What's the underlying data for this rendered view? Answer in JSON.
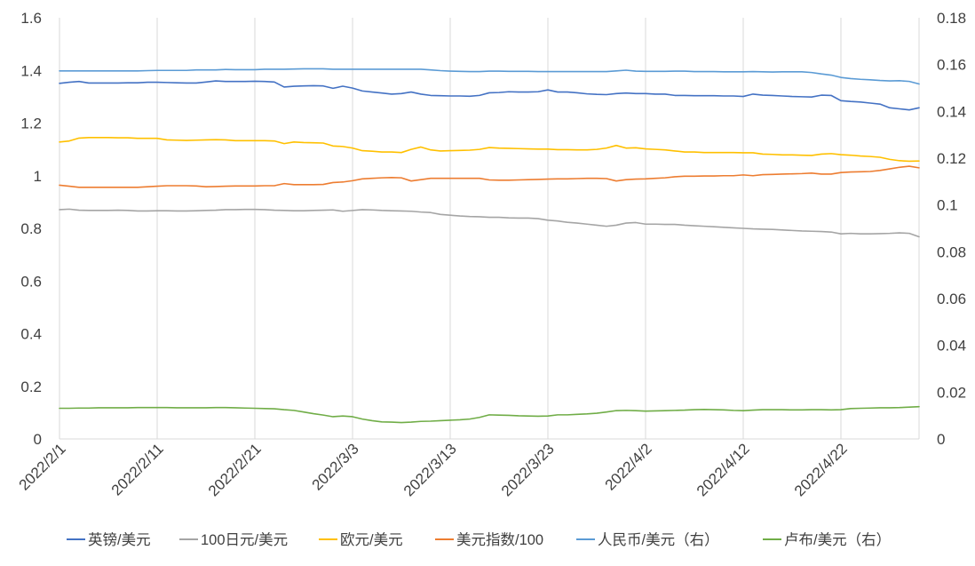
{
  "chart_data": {
    "type": "line",
    "x": [
      "2022/2/1",
      "2022/2/2",
      "2022/2/3",
      "2022/2/4",
      "2022/2/5",
      "2022/2/6",
      "2022/2/7",
      "2022/2/8",
      "2022/2/9",
      "2022/2/10",
      "2022/2/11",
      "2022/2/12",
      "2022/2/13",
      "2022/2/14",
      "2022/2/15",
      "2022/2/16",
      "2022/2/17",
      "2022/2/18",
      "2022/2/19",
      "2022/2/20",
      "2022/2/21",
      "2022/2/22",
      "2022/2/23",
      "2022/2/24",
      "2022/2/25",
      "2022/2/26",
      "2022/2/27",
      "2022/2/28",
      "2022/3/1",
      "2022/3/2",
      "2022/3/3",
      "2022/3/4",
      "2022/3/5",
      "2022/3/6",
      "2022/3/7",
      "2022/3/8",
      "2022/3/9",
      "2022/3/10",
      "2022/3/11",
      "2022/3/12",
      "2022/3/13",
      "2022/3/14",
      "2022/3/15",
      "2022/3/16",
      "2022/3/17",
      "2022/3/18",
      "2022/3/19",
      "2022/3/20",
      "2022/3/21",
      "2022/3/22",
      "2022/3/23",
      "2022/3/24",
      "2022/3/25",
      "2022/3/26",
      "2022/3/27",
      "2022/3/28",
      "2022/3/29",
      "2022/3/30",
      "2022/3/31",
      "2022/4/1",
      "2022/4/2",
      "2022/4/3",
      "2022/4/4",
      "2022/4/5",
      "2022/4/6",
      "2022/4/7",
      "2022/4/8",
      "2022/4/9",
      "2022/4/10",
      "2022/4/11",
      "2022/4/12",
      "2022/4/13",
      "2022/4/14",
      "2022/4/15",
      "2022/4/16",
      "2022/4/17",
      "2022/4/18",
      "2022/4/19",
      "2022/4/20",
      "2022/4/21",
      "2022/4/22",
      "2022/4/23",
      "2022/4/24",
      "2022/4/25",
      "2022/4/26",
      "2022/4/27",
      "2022/4/28",
      "2022/4/29",
      "2022/4/30"
    ],
    "x_tick_labels": [
      "2022/2/1",
      "2022/2/11",
      "2022/2/21",
      "2022/3/3",
      "2022/3/13",
      "2022/3/23",
      "2022/4/2",
      "2022/4/12",
      "2022/4/22"
    ],
    "x_tick_indices": [
      0,
      10,
      20,
      30,
      40,
      50,
      60,
      70,
      80
    ],
    "y_left": {
      "ylim": [
        0,
        1.6
      ],
      "ticks": [
        "0",
        "0.2",
        "0.4",
        "0.6",
        "0.8",
        "1",
        "1.2",
        "1.4",
        "1.6"
      ]
    },
    "y_right": {
      "ylim": [
        0,
        0.18
      ],
      "ticks": [
        "0",
        "0.02",
        "0.04",
        "0.06",
        "0.08",
        "0.1",
        "0.12",
        "0.14",
        "0.16",
        "0.18"
      ]
    },
    "grid": "vertical",
    "legend_position": "bottom",
    "series": [
      {
        "name": "英镑/美元",
        "axis": "left",
        "color": "#4472C4",
        "values": [
          1.351,
          1.355,
          1.358,
          1.352,
          1.352,
          1.352,
          1.352,
          1.353,
          1.353,
          1.355,
          1.355,
          1.354,
          1.353,
          1.352,
          1.352,
          1.356,
          1.36,
          1.358,
          1.358,
          1.358,
          1.359,
          1.358,
          1.356,
          1.337,
          1.34,
          1.341,
          1.342,
          1.341,
          1.332,
          1.34,
          1.333,
          1.322,
          1.318,
          1.314,
          1.31,
          1.312,
          1.318,
          1.31,
          1.305,
          1.304,
          1.303,
          1.303,
          1.302,
          1.305,
          1.315,
          1.316,
          1.319,
          1.318,
          1.318,
          1.319,
          1.326,
          1.318,
          1.318,
          1.315,
          1.311,
          1.309,
          1.308,
          1.312,
          1.314,
          1.312,
          1.312,
          1.31,
          1.31,
          1.305,
          1.305,
          1.304,
          1.304,
          1.304,
          1.303,
          1.303,
          1.301,
          1.31,
          1.306,
          1.305,
          1.303,
          1.301,
          1.3,
          1.299,
          1.306,
          1.305,
          1.285,
          1.282,
          1.28,
          1.276,
          1.272,
          1.258,
          1.254,
          1.25,
          1.258
        ]
      },
      {
        "name": "100日元/美元",
        "axis": "left",
        "color": "#A5A5A5",
        "values": [
          0.871,
          0.873,
          0.869,
          0.868,
          0.868,
          0.868,
          0.869,
          0.868,
          0.866,
          0.866,
          0.867,
          0.867,
          0.866,
          0.866,
          0.867,
          0.868,
          0.869,
          0.871,
          0.871,
          0.872,
          0.872,
          0.871,
          0.869,
          0.868,
          0.867,
          0.867,
          0.868,
          0.869,
          0.87,
          0.865,
          0.868,
          0.871,
          0.87,
          0.868,
          0.867,
          0.866,
          0.865,
          0.862,
          0.86,
          0.853,
          0.85,
          0.847,
          0.845,
          0.844,
          0.842,
          0.842,
          0.84,
          0.839,
          0.839,
          0.837,
          0.831,
          0.828,
          0.823,
          0.82,
          0.816,
          0.812,
          0.808,
          0.812,
          0.82,
          0.822,
          0.816,
          0.816,
          0.815,
          0.815,
          0.812,
          0.81,
          0.808,
          0.806,
          0.804,
          0.802,
          0.8,
          0.798,
          0.797,
          0.796,
          0.794,
          0.792,
          0.79,
          0.789,
          0.788,
          0.786,
          0.779,
          0.781,
          0.779,
          0.779,
          0.78,
          0.781,
          0.783,
          0.781,
          0.768
        ]
      },
      {
        "name": "欧元/美元",
        "axis": "left",
        "color": "#FFC000",
        "values": [
          1.128,
          1.132,
          1.143,
          1.145,
          1.145,
          1.145,
          1.144,
          1.144,
          1.142,
          1.142,
          1.142,
          1.136,
          1.135,
          1.134,
          1.135,
          1.136,
          1.137,
          1.136,
          1.133,
          1.133,
          1.133,
          1.133,
          1.132,
          1.122,
          1.128,
          1.126,
          1.125,
          1.124,
          1.113,
          1.111,
          1.105,
          1.095,
          1.093,
          1.09,
          1.09,
          1.088,
          1.1,
          1.109,
          1.098,
          1.094,
          1.095,
          1.096,
          1.097,
          1.1,
          1.107,
          1.105,
          1.104,
          1.103,
          1.102,
          1.101,
          1.101,
          1.099,
          1.099,
          1.098,
          1.098,
          1.1,
          1.105,
          1.115,
          1.105,
          1.106,
          1.102,
          1.1,
          1.098,
          1.094,
          1.09,
          1.09,
          1.088,
          1.088,
          1.088,
          1.088,
          1.087,
          1.087,
          1.082,
          1.081,
          1.079,
          1.079,
          1.078,
          1.077,
          1.082,
          1.084,
          1.08,
          1.078,
          1.075,
          1.073,
          1.07,
          1.062,
          1.057,
          1.055,
          1.056
        ]
      },
      {
        "name": "美元指数/100",
        "axis": "left",
        "color": "#ED7D31",
        "values": [
          0.964,
          0.96,
          0.956,
          0.956,
          0.956,
          0.956,
          0.956,
          0.956,
          0.956,
          0.958,
          0.96,
          0.962,
          0.962,
          0.962,
          0.961,
          0.958,
          0.959,
          0.96,
          0.961,
          0.961,
          0.961,
          0.962,
          0.962,
          0.97,
          0.966,
          0.966,
          0.966,
          0.967,
          0.974,
          0.976,
          0.981,
          0.988,
          0.99,
          0.992,
          0.993,
          0.992,
          0.98,
          0.985,
          0.99,
          0.99,
          0.99,
          0.99,
          0.99,
          0.99,
          0.984,
          0.983,
          0.983,
          0.984,
          0.985,
          0.986,
          0.987,
          0.988,
          0.988,
          0.989,
          0.99,
          0.99,
          0.989,
          0.98,
          0.985,
          0.987,
          0.988,
          0.99,
          0.992,
          0.996,
          0.998,
          0.998,
          0.999,
          0.999,
          1.0,
          1.0,
          1.003,
          1.0,
          1.004,
          1.005,
          1.006,
          1.007,
          1.008,
          1.01,
          1.006,
          1.006,
          1.012,
          1.014,
          1.015,
          1.016,
          1.02,
          1.026,
          1.032,
          1.036,
          1.03
        ]
      },
      {
        "name": "人民币/美元（右）",
        "axis": "right",
        "color": "#5B9BD5",
        "values": [
          0.1573,
          0.1573,
          0.1573,
          0.1573,
          0.1573,
          0.1573,
          0.1573,
          0.1573,
          0.1573,
          0.1574,
          0.1575,
          0.1575,
          0.1575,
          0.1575,
          0.1577,
          0.1577,
          0.1577,
          0.1579,
          0.1578,
          0.1578,
          0.1578,
          0.158,
          0.158,
          0.158,
          0.1581,
          0.1582,
          0.1582,
          0.1582,
          0.158,
          0.158,
          0.158,
          0.158,
          0.158,
          0.158,
          0.158,
          0.158,
          0.158,
          0.158,
          0.1577,
          0.1574,
          0.1572,
          0.1571,
          0.157,
          0.157,
          0.1572,
          0.1572,
          0.1571,
          0.1571,
          0.1571,
          0.157,
          0.157,
          0.157,
          0.157,
          0.157,
          0.157,
          0.157,
          0.157,
          0.1573,
          0.1576,
          0.1572,
          0.1571,
          0.1571,
          0.1571,
          0.1572,
          0.1572,
          0.157,
          0.157,
          0.157,
          0.1569,
          0.1569,
          0.1569,
          0.157,
          0.1569,
          0.1568,
          0.1569,
          0.1569,
          0.1569,
          0.1566,
          0.156,
          0.1555,
          0.1545,
          0.154,
          0.1537,
          0.1535,
          0.1532,
          0.153,
          0.1531,
          0.1528,
          0.1517
        ]
      },
      {
        "name": "卢布/美元（右）",
        "axis": "right",
        "color": "#70AD47",
        "values": [
          0.0131,
          0.0131,
          0.0132,
          0.0132,
          0.0133,
          0.0133,
          0.0133,
          0.0133,
          0.0134,
          0.0134,
          0.0134,
          0.0134,
          0.0133,
          0.0133,
          0.0133,
          0.0133,
          0.0134,
          0.0134,
          0.0133,
          0.0132,
          0.0131,
          0.013,
          0.0129,
          0.0125,
          0.0122,
          0.0115,
          0.0108,
          0.0102,
          0.0095,
          0.0098,
          0.0095,
          0.0085,
          0.0078,
          0.0073,
          0.0072,
          0.007,
          0.0072,
          0.0075,
          0.0076,
          0.0078,
          0.008,
          0.0082,
          0.0085,
          0.0092,
          0.0103,
          0.0102,
          0.0101,
          0.0099,
          0.0098,
          0.0097,
          0.0098,
          0.0103,
          0.0103,
          0.0105,
          0.0107,
          0.011,
          0.0115,
          0.0121,
          0.0122,
          0.0121,
          0.0119,
          0.012,
          0.0121,
          0.0122,
          0.0123,
          0.0125,
          0.0126,
          0.0125,
          0.0124,
          0.0122,
          0.0121,
          0.0123,
          0.0125,
          0.0125,
          0.0125,
          0.0124,
          0.0124,
          0.0125,
          0.0125,
          0.0124,
          0.0125,
          0.013,
          0.0131,
          0.0132,
          0.0133,
          0.0133,
          0.0134,
          0.0136,
          0.0138
        ]
      }
    ]
  }
}
